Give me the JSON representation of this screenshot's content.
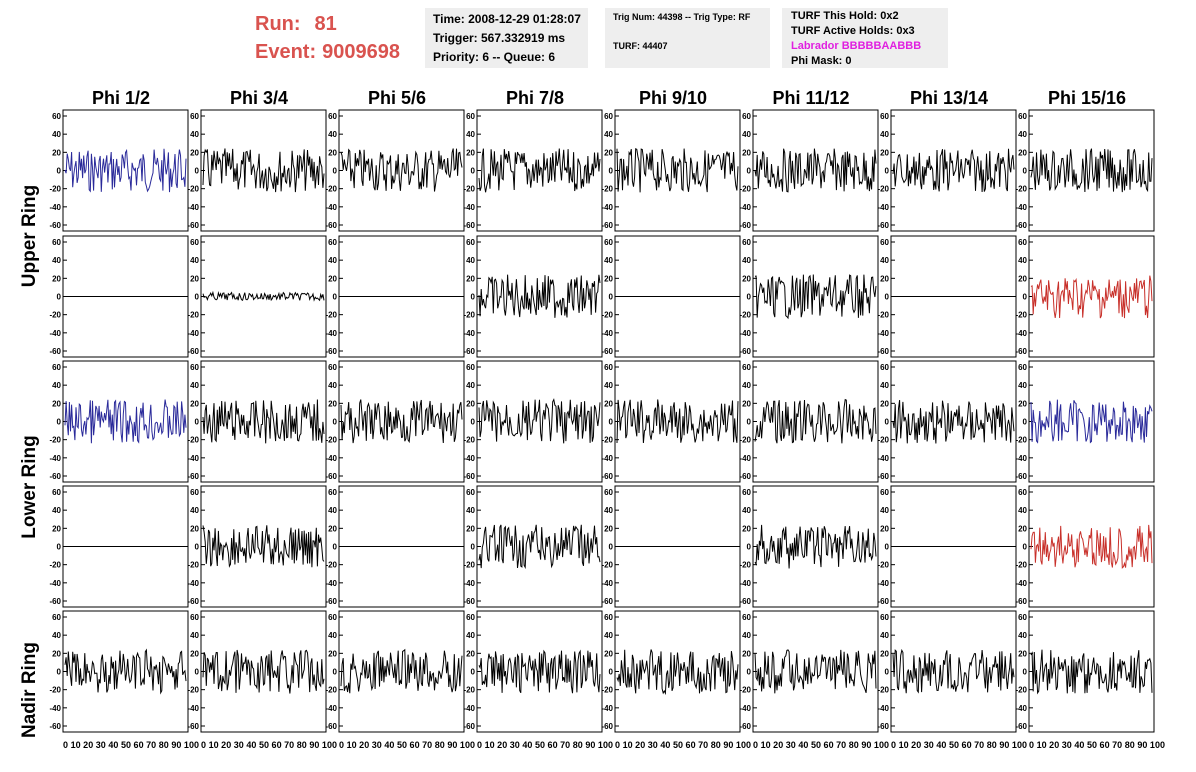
{
  "run": {
    "run_label": "Run:",
    "run_value": "81",
    "event_label": "Event:",
    "event_value": "9009698",
    "color": "#d9534f"
  },
  "info_time": {
    "time": "Time: 2008-12-29 01:28:07",
    "trigger": "Trigger: 567.332919 ms",
    "priority": "Priority: 6 -- Queue: 6"
  },
  "info_trig": {
    "trig": "Trig Num: 44398 -- Trig Type: RF",
    "turf": "TURF: 44407"
  },
  "info_turf": {
    "hold": "TURF This Hold: 0x2",
    "active": "TURF Active Holds: 0x3",
    "labrador": "Labrador BBBBBAABBB",
    "phimask": "Phi Mask: 0"
  },
  "columns": [
    "Phi 1/2",
    "Phi 3/4",
    "Phi 5/6",
    "Phi 7/8",
    "Phi 9/10",
    "Phi 11/12",
    "Phi 13/14",
    "Phi 15/16"
  ],
  "rows": [
    "Upper Ring",
    "Lower Ring",
    "Nadir Ring"
  ],
  "y_ticks": [
    "60",
    "40",
    "20",
    "0",
    "-20",
    "-40",
    "-60"
  ],
  "x_tick_text": "0 10 20 30 40 50 60 70 80 90 100",
  "colors": {
    "black": "#000000",
    "blue": "#2a2a9a",
    "red": "#c8302a"
  },
  "panels": [
    [
      "blue",
      "black",
      "black",
      "black",
      "black",
      "black",
      "black",
      "black"
    ],
    [
      "flat",
      "black-small",
      "flat",
      "black",
      "flat",
      "black",
      "flat",
      "red"
    ],
    [
      "blue",
      "black",
      "black",
      "black",
      "black",
      "black",
      "black",
      "blue"
    ],
    [
      "flat",
      "black",
      "flat",
      "black",
      "flat",
      "black",
      "flat",
      "red"
    ],
    [
      "black",
      "black",
      "black",
      "black",
      "black",
      "black",
      "black",
      "black"
    ]
  ]
}
